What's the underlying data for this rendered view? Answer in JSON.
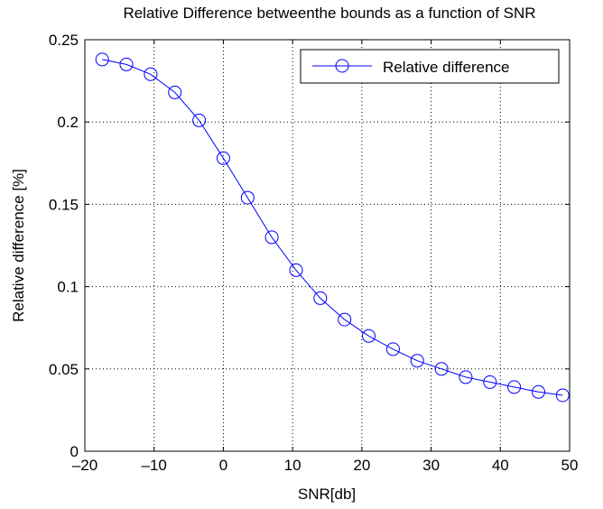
{
  "chart_data": {
    "type": "line",
    "title": "Relative Difference betweenthe bounds as a function of SNR",
    "xlabel": "SNR[db]",
    "ylabel": "Relative difference [%]",
    "xlim": [
      -20,
      50
    ],
    "ylim": [
      0,
      0.25
    ],
    "xticks": [
      -20,
      -10,
      0,
      10,
      20,
      30,
      40,
      50
    ],
    "xtick_labels": [
      "–20",
      "–10",
      "0",
      "10",
      "20",
      "30",
      "40",
      "50"
    ],
    "yticks": [
      0,
      0.05,
      0.1,
      0.15,
      0.2,
      0.25
    ],
    "ytick_labels": [
      "0",
      "0.05",
      "0.1",
      "0.15",
      "0.2",
      "0.25"
    ],
    "grid": true,
    "legend_position": "top-right",
    "series": [
      {
        "name": "Relative difference",
        "color": "#0000ff",
        "marker": "circle",
        "x": [
          -17.5,
          -14,
          -10.5,
          -7,
          -3.5,
          0,
          3.5,
          7,
          10.5,
          14,
          17.5,
          21,
          24.5,
          28,
          31.5,
          35,
          38.5,
          42,
          45.5,
          49
        ],
        "y": [
          0.238,
          0.235,
          0.229,
          0.218,
          0.201,
          0.178,
          0.154,
          0.13,
          0.11,
          0.093,
          0.08,
          0.07,
          0.062,
          0.055,
          0.05,
          0.045,
          0.042,
          0.039,
          0.036,
          0.034
        ]
      }
    ]
  }
}
